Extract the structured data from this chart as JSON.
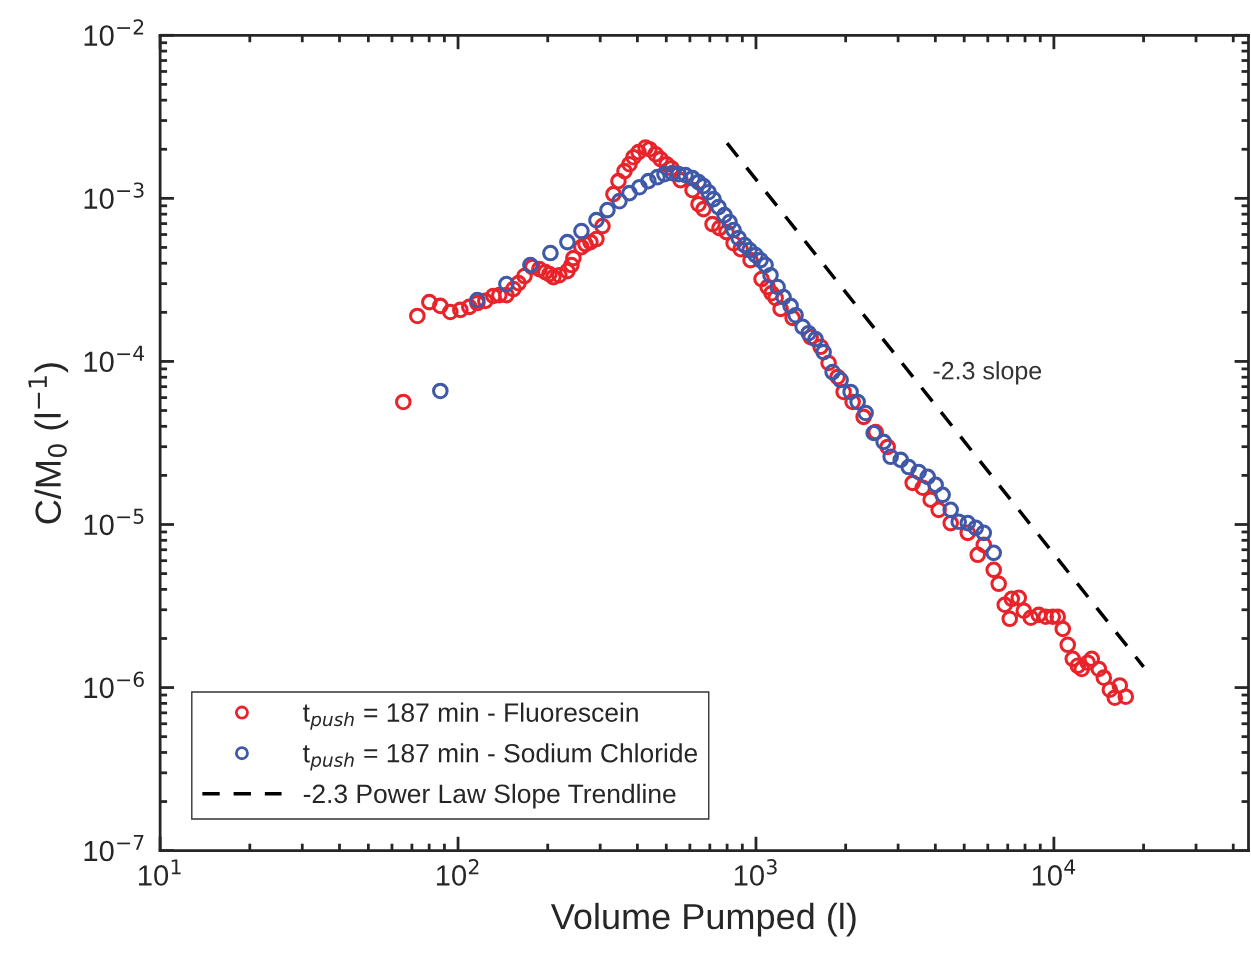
{
  "chart_data": {
    "type": "scatter",
    "xlabel": "Volume Pumped (l)",
    "ylabel": "C/M$_{0}$ (l$^{−1}$)",
    "log": "xy",
    "grid": false,
    "legend": "bottom left",
    "marker": "circle",
    "xlim": [
      10,
      45000
    ],
    "ylim": [
      1e-07,
      0.01
    ],
    "xticks": [
      {
        "value": 10,
        "label": "10$^{1}$"
      },
      {
        "value": 100,
        "label": "10$^{2}$"
      },
      {
        "value": 1000,
        "label": "10$^{3}$"
      },
      {
        "value": 10000,
        "label": "10$^{4}$"
      }
    ],
    "yticks": [
      {
        "value": 1e-07,
        "label": "10$^{−7}$"
      },
      {
        "value": 1e-06,
        "label": "10$^{−6}$"
      },
      {
        "value": 1e-05,
        "label": "10$^{−5}$"
      },
      {
        "value": 0.0001,
        "label": "10$^{−4}$"
      },
      {
        "value": 0.001,
        "label": "10$^{−3}$"
      },
      {
        "value": 0.01,
        "label": "10$^{−2}$"
      }
    ],
    "annotations": [
      "-2.3 slope"
    ],
    "series": [
      {
        "name": "t$_{push}$ = 187 min - Fluorescein",
        "color": "#e8232a",
        "x": [
          65.5,
          73.0,
          80.1,
          87.2,
          94.2,
          101.8,
          109.1,
          116.1,
          123.5,
          131.4,
          137.6,
          145.3,
          153.4,
          159.5,
          167.1,
          177.6,
          187.5,
          196.4,
          202.6,
          208.9,
          218.8,
          232.8,
          240.2,
          243.9,
          259.5,
          267.7,
          278.2,
          291.4,
          305.3,
          332.4,
          345.5,
          361.9,
          376.2,
          388.1,
          403.4,
          425.8,
          439.2,
          460.1,
          478.2,
          500.9,
          520.5,
          558.2,
          612.4,
          641.5,
          666.7,
          714.6,
          754.3,
          796.3,
          841,
          888,
          959,
          1044,
          1094,
          1128,
          1164,
          1210,
          1327,
          1526,
          1648,
          1753,
          1879,
          1969,
          2111,
          2298,
          2522,
          2767,
          3061,
          3357,
          3628,
          3857,
          4104,
          4504,
          5139,
          5551,
          5816,
          6281,
          6527,
          6839,
          7110,
          7221,
          7623,
          7924,
          8366,
          8897,
          9392,
          9913,
          10300,
          10710,
          11130,
          11570,
          12030,
          12400,
          12990,
          13400,
          14150,
          14710,
          15410,
          16010,
          16640,
          17430
        ],
        "values": [
          5.64e-05,
          0.00019,
          0.000231,
          0.000219,
          0.000201,
          0.000207,
          0.000216,
          0.000228,
          0.000235,
          0.000252,
          0.000255,
          0.000255,
          0.000278,
          0.000302,
          0.000334,
          0.000379,
          0.000368,
          0.000353,
          0.000343,
          0.000329,
          0.000338,
          0.000358,
          0.00039,
          0.00043,
          0.000502,
          0.000524,
          0.000539,
          0.000563,
          0.000676,
          0.001061,
          0.001275,
          0.001468,
          0.00162,
          0.001788,
          0.00192,
          0.00205,
          0.002002,
          0.001866,
          0.001739,
          0.00162,
          0.001531,
          0.001293,
          0.001123,
          0.000921,
          0.000859,
          0.000695,
          0.000657,
          0.000621,
          0.000531,
          0.000488,
          0.000418,
          0.00032,
          0.000286,
          0.000262,
          0.000245,
          0.00021,
          0.000185,
          0.000141,
          0.000123,
          9.78e-05,
          8.03e-05,
          6.5e-05,
          5.64e-05,
          4.57e-05,
          3.69e-05,
          2.99e-05,
          null,
          1.8e-05,
          1.68e-05,
          1.42e-05,
          1.23e-05,
          1.02e-05,
          8.89e-06,
          6.52e-06,
          7.5e-06,
          5.27e-06,
          4.33e-06,
          3.22e-06,
          2.64e-06,
          3.5e-06,
          3.55e-06,
          2.96e-06,
          2.68e-06,
          2.79e-06,
          2.72e-06,
          2.72e-06,
          2.72e-06,
          2.29e-06,
          1.83e-06,
          1.5e-06,
          1.36e-06,
          1.3e-06,
          1.42e-06,
          1.5e-06,
          1.3e-06,
          1.15e-06,
          9.7e-07,
          8.67e-07,
          1.03e-06,
          8.79e-07
        ]
      },
      {
        "name": "t$_{push}$ = 187 min - Sodium Chloride",
        "color": "#3f58a8",
        "x": [
          87.2,
          116.1,
          145.3,
          174.9,
          204.2,
          232.8,
          259.5,
          291.4,
          317.3,
          348.2,
          376.2,
          406.4,
          435.6,
          467.0,
          493.0,
          524.6,
          549.5,
          580.0,
          612.4,
          641.5,
          666.7,
          692.9,
          720.2,
          748.6,
          784.3,
          815.2,
          841,
          874.4,
          915.9,
          952.0,
          996.8,
          1036,
          1077,
          1119,
          1182,
          1238,
          1307,
          1358,
          1434,
          1502,
          1585,
          1687,
          1808,
          1924,
          2078,
          2194,
          2334,
          2483,
          2683,
          2832,
          3061,
          3255,
          3516,
          3771,
          4010,
          4232,
          4504,
          4791,
          5139,
          5466,
          5816,
          6281
        ],
        "values": [
          6.59e-05,
          0.000238,
          0.000298,
          0.00039,
          0.000462,
          0.000539,
          0.00063,
          0.000735,
          0.000847,
          0.000961,
          0.001076,
          0.001171,
          0.001275,
          0.001349,
          0.001407,
          0.001427,
          0.001407,
          0.001388,
          0.00133,
          0.001257,
          0.001188,
          0.001091,
          0.000989,
          0.000884,
          0.000789,
          0.000715,
          0.000639,
          0.00057,
          0.000517,
          0.000482,
          0.000449,
          0.000418,
          0.00039,
          0.000338,
          0.000286,
          0.000248,
          0.000219,
          0.000192,
          0.000163,
          0.000149,
          0.000137,
          0.000114,
          8.61e-05,
          7.69e-05,
          6.5e-05,
          5.64e-05,
          4.83e-05,
          3.64e-05,
          3.21e-05,
          2.6e-05,
          2.49e-05,
          2.25e-05,
          2.1e-05,
          1.96e-05,
          1.75e-05,
          1.52e-05,
          1.23e-05,
          1.04e-05,
          1.02e-05,
          9.54e-06,
          8.89e-06,
          6.7e-06
        ]
      },
      {
        "name": "-2.3 Power Law Slope Trendline",
        "type": "line",
        "color": "#000000",
        "line_style": "dashed",
        "marker": "none",
        "x": [
          800,
          20000
        ],
        "values": [
          0.00218,
          1.34e-06
        ]
      }
    ]
  }
}
